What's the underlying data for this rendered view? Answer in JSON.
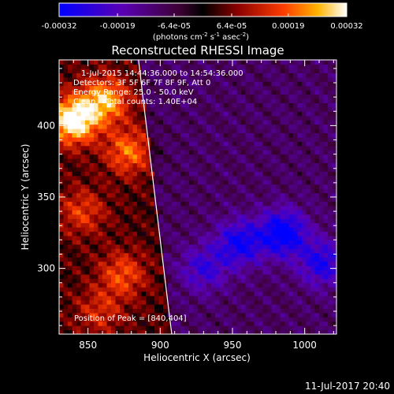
{
  "chart_data": {
    "type": "heatmap",
    "title": "Reconstructed RHESSI Image",
    "xlabel": "Heliocentric X (arcsec)",
    "ylabel": "Heliocentric Y (arcsec)",
    "xlim": [
      830,
      1022
    ],
    "ylim": [
      254,
      446
    ],
    "x_ticks": [
      "850",
      "900",
      "950",
      "1000"
    ],
    "x_tick_values": [
      850,
      900,
      950,
      1000
    ],
    "y_ticks": [
      "300",
      "350",
      "400"
    ],
    "y_tick_values": [
      300,
      350,
      400
    ],
    "colorbar": {
      "min": -0.00032,
      "max": 0.00032,
      "tick_labels": [
        "-0.00032",
        "-0.00019",
        "-6.4e-05",
        "6.4e-05",
        "0.00019",
        "0.00032"
      ],
      "tick_values": [
        -0.00032,
        -0.00019,
        -6.4e-05,
        6.4e-05,
        0.00019,
        0.00032
      ],
      "unit_label": "(photons cm",
      "unit_exp1": "-2",
      "unit_mid": " s",
      "unit_exp2": "-1",
      "unit_mid2": " asec",
      "unit_exp3": "-2",
      "unit_end": ")"
    },
    "annotations": {
      "time_range": "1-Jul-2015 14:44:36.000 to 14:54:36.000",
      "detectors": "Detectors: 3F 5F 6F 7F 8F 9F, Att 0",
      "energy": "Energy Range: 25.0 - 50.0 keV",
      "clean": "Clean    Total counts: 1.40E+04",
      "peak": "Position of Peak = [840,404]"
    },
    "peak_position": [
      840,
      404
    ],
    "grid": false,
    "limb": [
      [
        885,
        446
      ],
      [
        888,
        420
      ],
      [
        891,
        395
      ],
      [
        894,
        370
      ],
      [
        897,
        345
      ],
      [
        900,
        320
      ],
      [
        903,
        295
      ],
      [
        906,
        270
      ],
      [
        908,
        254
      ]
    ],
    "bright_sources": [
      {
        "x": 840,
        "y": 404,
        "value": 0.00032
      },
      {
        "x": 862,
        "y": 418,
        "value": 0.00022
      },
      {
        "x": 878,
        "y": 382,
        "value": 0.00017
      },
      {
        "x": 874,
        "y": 296,
        "value": 0.00014
      },
      {
        "x": 846,
        "y": 340,
        "value": 0.00012
      },
      {
        "x": 858,
        "y": 270,
        "value": 0.0001
      }
    ],
    "dark_sources": [
      {
        "x": 985,
        "y": 325,
        "value": -0.00025
      },
      {
        "x": 955,
        "y": 318,
        "value": -0.0002
      },
      {
        "x": 1012,
        "y": 304,
        "value": -0.00018
      },
      {
        "x": 930,
        "y": 300,
        "value": -0.00014
      }
    ]
  },
  "footer": {
    "date": "11-Jul-2017 20:40"
  }
}
